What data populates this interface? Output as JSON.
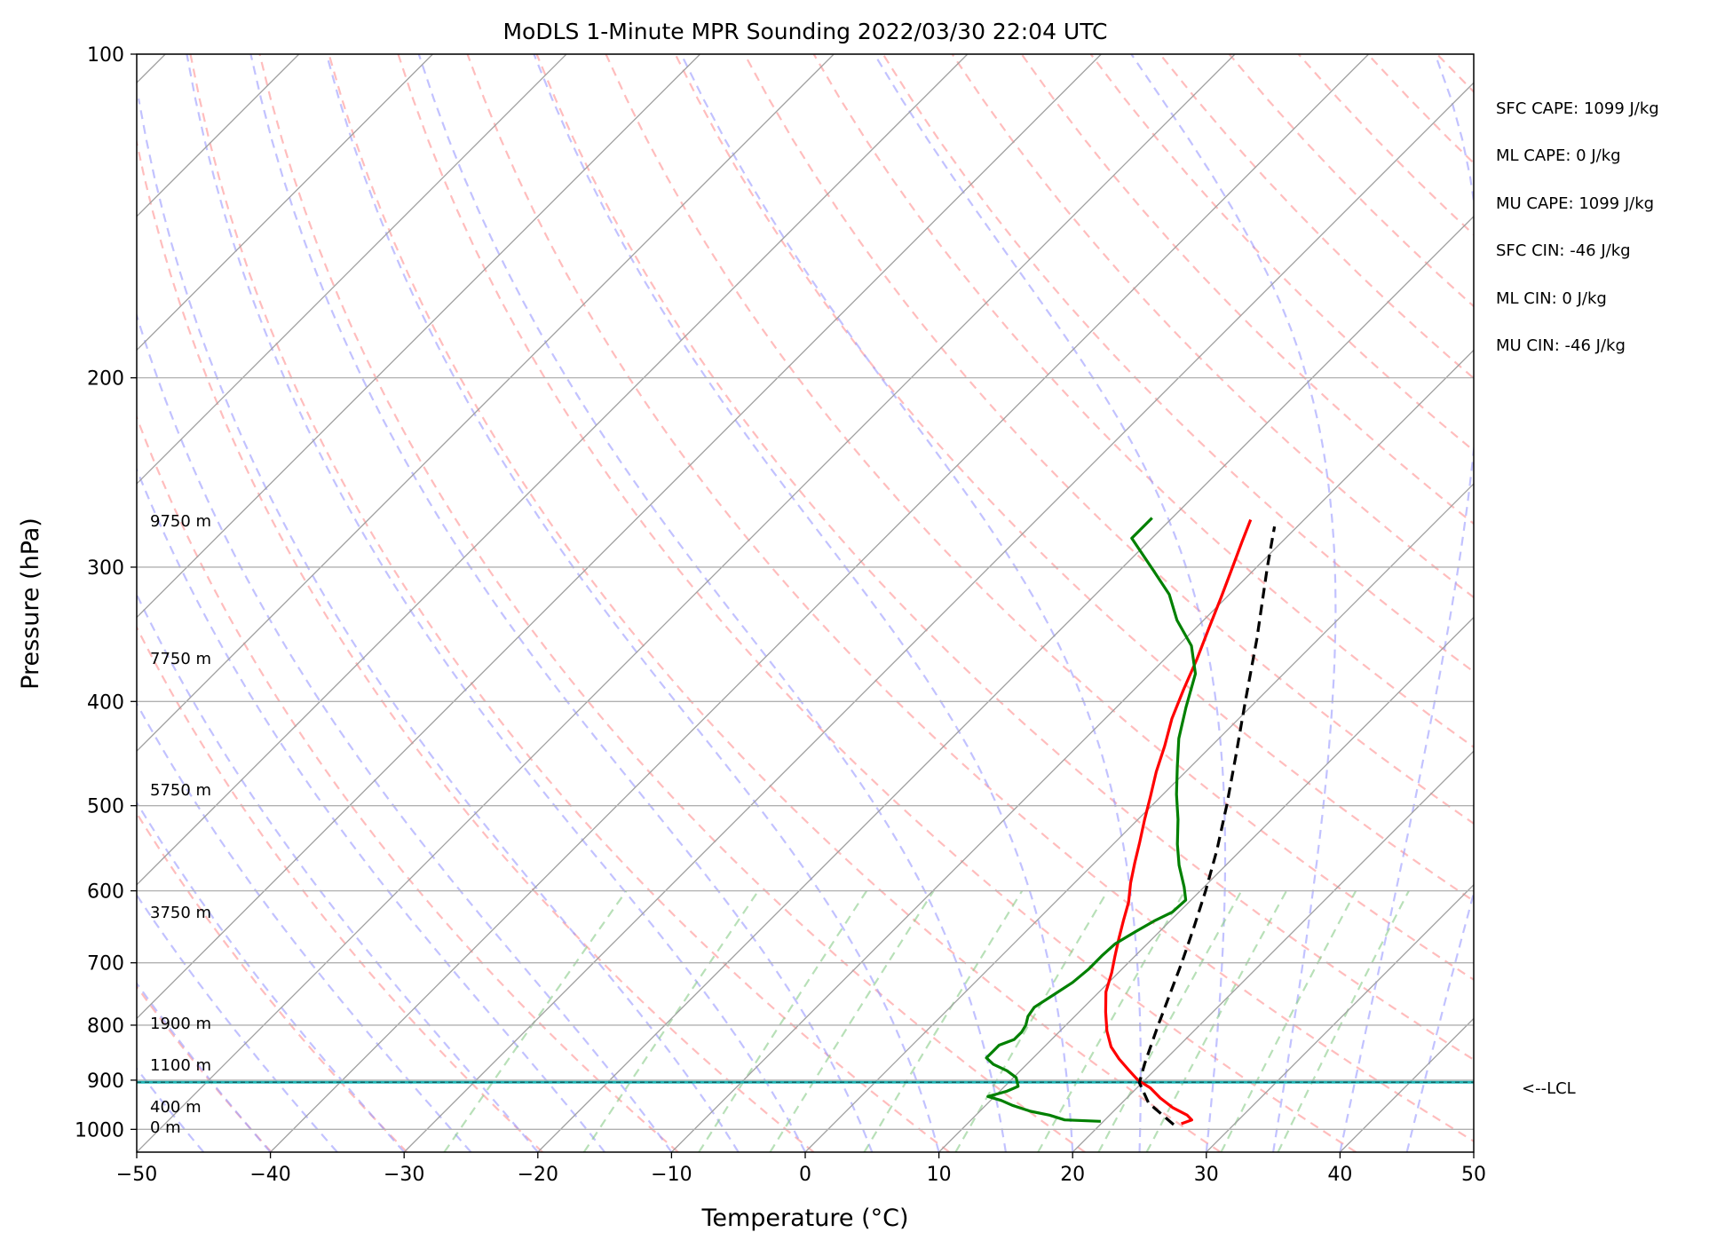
{
  "chart_data": {
    "type": "line",
    "subtype": "skew-t log-p",
    "title": "MoDLS 1-Minute MPR Sounding 2022/03/30 22:04 UTC",
    "xlabel": "Temperature (°C)",
    "ylabel": "Pressure (hPa)",
    "xlim": [
      -50,
      50
    ],
    "ylim": [
      1050,
      100
    ],
    "y_scale": "log",
    "grid": true,
    "x_ticks": [
      {
        "value": -50,
        "label": "−50"
      },
      {
        "value": -40,
        "label": "−40"
      },
      {
        "value": -30,
        "label": "−30"
      },
      {
        "value": -20,
        "label": "−20"
      },
      {
        "value": -10,
        "label": "−10"
      },
      {
        "value": 0,
        "label": "0"
      },
      {
        "value": 10,
        "label": "10"
      },
      {
        "value": 20,
        "label": "20"
      },
      {
        "value": 30,
        "label": "30"
      },
      {
        "value": 40,
        "label": "40"
      },
      {
        "value": 50,
        "label": "50"
      }
    ],
    "y_ticks": [
      {
        "value": 100,
        "label": "100"
      },
      {
        "value": 200,
        "label": "200"
      },
      {
        "value": 300,
        "label": "300"
      },
      {
        "value": 400,
        "label": "400"
      },
      {
        "value": 500,
        "label": "500"
      },
      {
        "value": 600,
        "label": "600"
      },
      {
        "value": 700,
        "label": "700"
      },
      {
        "value": 800,
        "label": "800"
      },
      {
        "value": 900,
        "label": "900"
      },
      {
        "value": 1000,
        "label": "1000"
      }
    ],
    "series": [
      {
        "color": "#ff0000",
        "points": [
          [
            26.0,
            988
          ],
          [
            26.5,
            980
          ],
          [
            25.8,
            970
          ],
          [
            24.2,
            955
          ],
          [
            22.5,
            935
          ],
          [
            21.0,
            915
          ],
          [
            19.5,
            900
          ],
          [
            18.0,
            880
          ],
          [
            16.5,
            860
          ],
          [
            15.0,
            838
          ],
          [
            13.5,
            810
          ],
          [
            12.0,
            778
          ],
          [
            10.5,
            745
          ],
          [
            9.5,
            715
          ],
          [
            8.5,
            690
          ],
          [
            7.5,
            665
          ],
          [
            6.5,
            640
          ],
          [
            5.5,
            615
          ],
          [
            4.2,
            590
          ],
          [
            3.0,
            565
          ],
          [
            1.8,
            540
          ],
          [
            0.5,
            515
          ],
          [
            -0.8,
            490
          ],
          [
            -2.2,
            465
          ],
          [
            -3.5,
            440
          ],
          [
            -5.0,
            415
          ],
          [
            -6.3,
            390
          ],
          [
            -7.6,
            365
          ],
          [
            -9.0,
            342
          ],
          [
            -10.4,
            320
          ],
          [
            -11.8,
            300
          ],
          [
            -13.0,
            284
          ],
          [
            -14.0,
            271
          ]
        ]
      },
      {
        "color": "#008000",
        "points": [
          [
            19.8,
            983
          ],
          [
            17.0,
            980
          ],
          [
            15.5,
            970
          ],
          [
            13.8,
            962
          ],
          [
            12.0,
            950
          ],
          [
            10.8,
            940
          ],
          [
            9.5,
            932
          ],
          [
            10.0,
            927
          ],
          [
            10.5,
            922
          ],
          [
            11.0,
            912
          ],
          [
            10.2,
            895
          ],
          [
            9.0,
            882
          ],
          [
            7.5,
            870
          ],
          [
            6.5,
            858
          ],
          [
            6.5,
            845
          ],
          [
            6.5,
            835
          ],
          [
            7.2,
            825
          ],
          [
            7.2,
            812
          ],
          [
            7.0,
            800
          ],
          [
            6.5,
            785
          ],
          [
            6.3,
            770
          ],
          [
            6.8,
            750
          ],
          [
            7.3,
            730
          ],
          [
            7.5,
            710
          ],
          [
            7.5,
            690
          ],
          [
            7.6,
            672
          ],
          [
            8.2,
            655
          ],
          [
            8.8,
            640
          ],
          [
            9.5,
            628
          ],
          [
            9.6,
            612
          ],
          [
            8.5,
            595
          ],
          [
            6.5,
            568
          ],
          [
            4.8,
            543
          ],
          [
            3.0,
            515
          ],
          [
            1.0,
            488
          ],
          [
            -1.0,
            460
          ],
          [
            -3.0,
            433
          ],
          [
            -4.8,
            405
          ],
          [
            -6.6,
            377
          ],
          [
            -9.0,
            355
          ],
          [
            -12.0,
            336
          ],
          [
            -14.5,
            318
          ],
          [
            -17.5,
            302
          ],
          [
            -21.5,
            282
          ],
          [
            -21.5,
            270
          ]
        ]
      },
      {
        "color": "#000000",
        "points": [
          [
            25.5,
            990
          ],
          [
            22.0,
            945
          ],
          [
            19.8,
            905
          ],
          [
            18.8,
            870
          ],
          [
            18.0,
            840
          ],
          [
            16.9,
            800
          ],
          [
            15.5,
            750
          ],
          [
            14.0,
            700
          ],
          [
            12.3,
            650
          ],
          [
            10.4,
            600
          ],
          [
            8.2,
            550
          ],
          [
            5.6,
            500
          ],
          [
            2.6,
            450
          ],
          [
            -0.8,
            400
          ],
          [
            -4.6,
            350
          ],
          [
            -9.2,
            300
          ],
          [
            -11.7,
            275
          ]
        ]
      }
    ],
    "annotations": {
      "height_labels": [
        {
          "text": "0 m",
          "pressure": 1006
        },
        {
          "text": "400 m",
          "pressure": 960
        },
        {
          "text": "1100 m",
          "pressure": 884
        },
        {
          "text": "1900 m",
          "pressure": 808
        },
        {
          "text": "3750 m",
          "pressure": 636
        },
        {
          "text": "5750 m",
          "pressure": 490
        },
        {
          "text": "7750 m",
          "pressure": 378
        },
        {
          "text": "9750 m",
          "pressure": 279
        }
      ],
      "lcl": {
        "label": "<--LCL",
        "pressure": 904
      },
      "stats": [
        {
          "text": "SFC CAPE: 1099 J/kg"
        },
        {
          "text": "ML CAPE: 0 J/kg"
        },
        {
          "text": "MU CAPE: 1099 J/kg"
        },
        {
          "text": "SFC CIN: -46 J/kg"
        },
        {
          "text": "ML CIN: 0 J/kg"
        },
        {
          "text": "MU CIN: -46 J/kg"
        }
      ]
    },
    "background_lines": {
      "isotherm_color": "#a0a0a0",
      "dry_adiabat_color": "#ff9999",
      "moist_adiabat_color": "#9999ff",
      "mixing_ratio_color": "#88cc88",
      "lcl_line_color": "#1fb3b3"
    }
  }
}
